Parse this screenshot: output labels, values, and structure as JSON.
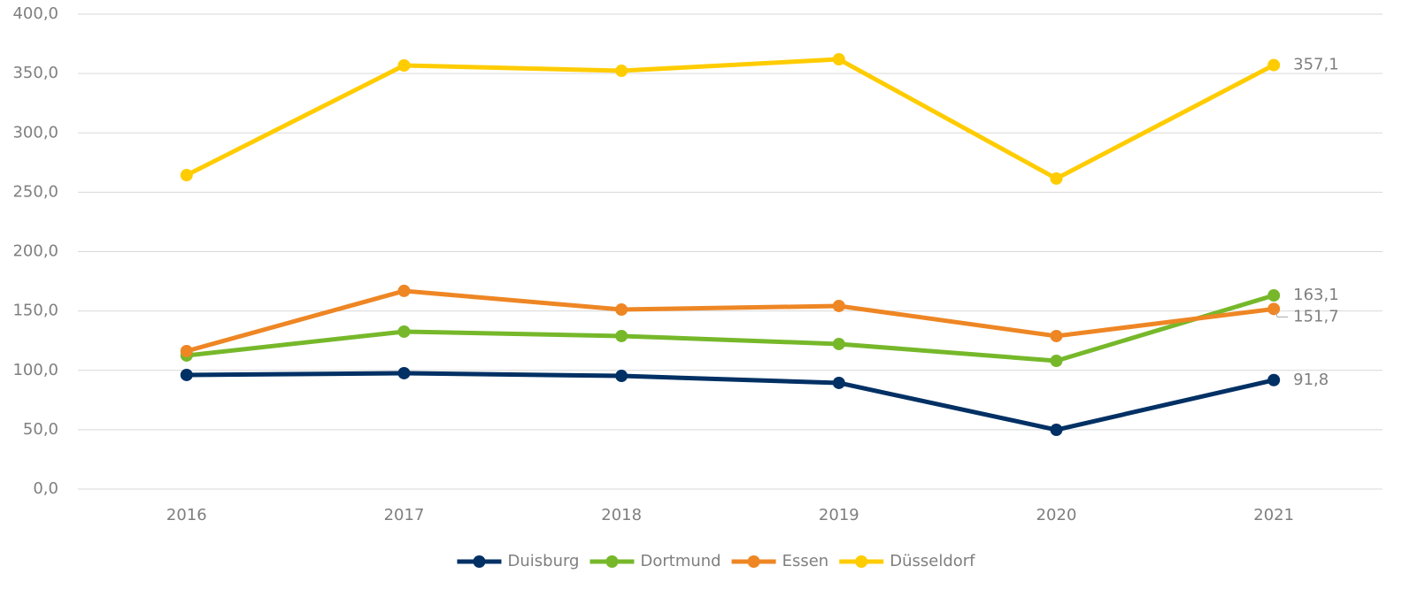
{
  "chart_data": {
    "type": "line",
    "categories": [
      "2016",
      "2017",
      "2018",
      "2019",
      "2020",
      "2021"
    ],
    "series": [
      {
        "name": "Duisburg",
        "color": "#003064",
        "values": [
          96.1,
          97.6,
          95.3,
          89.4,
          49.9,
          91.8
        ],
        "value_labels": [
          null,
          null,
          null,
          null,
          null,
          "91,8"
        ]
      },
      {
        "name": "Dortmund",
        "color": "#76b82a",
        "values": [
          112.5,
          132.6,
          128.9,
          122.2,
          108.0,
          163.1
        ],
        "value_labels": [
          null,
          null,
          null,
          null,
          null,
          "163,1"
        ]
      },
      {
        "name": "Essen",
        "color": "#ee8624",
        "values": [
          116.2,
          166.9,
          151.2,
          154.2,
          128.9,
          151.7
        ],
        "value_labels": [
          null,
          null,
          null,
          null,
          null,
          "151,7"
        ]
      },
      {
        "name": "Düsseldorf",
        "color": "#ffcc00",
        "values": [
          264.4,
          356.8,
          352.3,
          362.0,
          261.5,
          357.1
        ],
        "value_labels": [
          null,
          null,
          null,
          null,
          null,
          "357,1"
        ]
      }
    ],
    "ylim": [
      0,
      400
    ],
    "yticks": [
      {
        "value": 0,
        "label": "0,0"
      },
      {
        "value": 50,
        "label": "50,0"
      },
      {
        "value": 100,
        "label": "100,0"
      },
      {
        "value": 150,
        "label": "150,0"
      },
      {
        "value": 200,
        "label": "200,0"
      },
      {
        "value": 250,
        "label": "250,0"
      },
      {
        "value": 300,
        "label": "300,0"
      },
      {
        "value": 350,
        "label": "350,0"
      },
      {
        "value": 400,
        "label": "400,0"
      }
    ],
    "grid": true,
    "legend": "bottom"
  }
}
